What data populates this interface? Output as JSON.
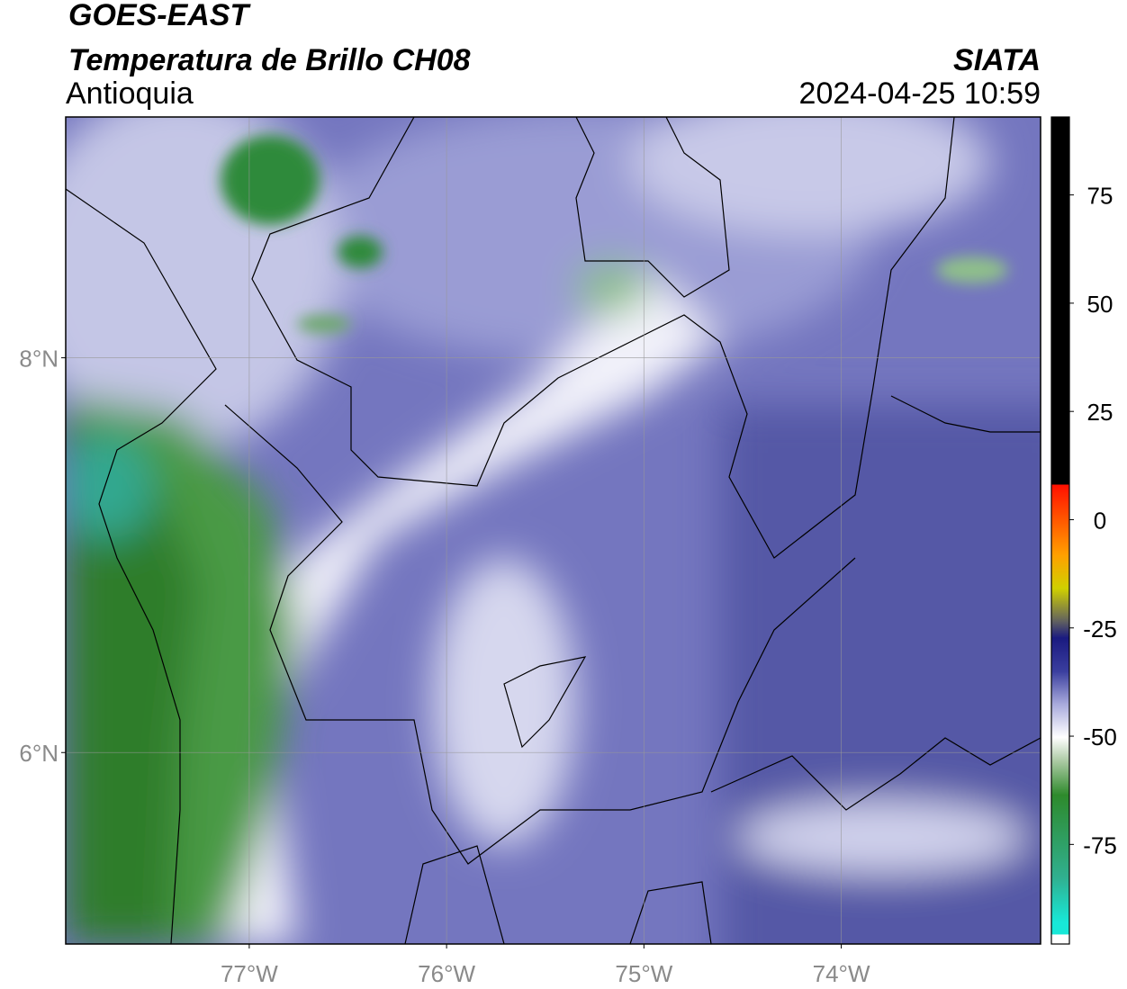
{
  "header": {
    "title": "GOES-EAST",
    "subtitle": "Temperatura de Brillo CH08",
    "region": "Antioquia",
    "source": "SIATA",
    "datetime": "2024-04-25 10:59"
  },
  "map": {
    "xlim": [
      -77.93,
      -72.99
    ],
    "ylim": [
      5.03,
      9.22
    ],
    "xticks": [
      {
        "value": -77,
        "label": "77°W"
      },
      {
        "value": -76,
        "label": "76°W"
      },
      {
        "value": -75,
        "label": "75°W"
      },
      {
        "value": -74,
        "label": "74°W"
      }
    ],
    "yticks": [
      {
        "value": 8,
        "label": "8°N"
      },
      {
        "value": 6,
        "label": "6°N"
      }
    ],
    "grid": true
  },
  "colorbar": {
    "lim": [
      -98,
      93
    ],
    "ticks": [
      -75,
      -50,
      -25,
      0,
      25,
      50,
      75
    ]
  }
}
